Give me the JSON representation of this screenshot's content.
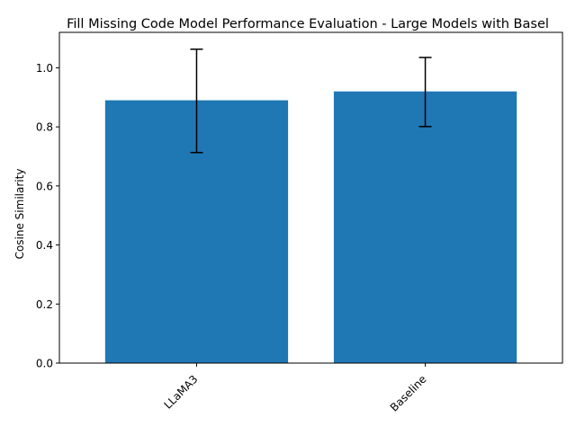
{
  "chart_data": {
    "type": "bar",
    "title": "Fill Missing Code Model Performance Evaluation - Large Models with Basel",
    "xlabel": "",
    "ylabel": "Cosine Similarity",
    "categories": [
      "LLaMA3",
      "Baseline"
    ],
    "values": [
      0.89,
      0.92
    ],
    "error_low": [
      0.713,
      0.801
    ],
    "error_high": [
      1.063,
      1.035
    ],
    "ylim": [
      0.0,
      1.12
    ],
    "yticks": [
      "0.0",
      "0.2",
      "0.4",
      "0.6",
      "0.8",
      "1.0"
    ],
    "ytick_values": [
      0.0,
      0.2,
      0.4,
      0.6,
      0.8,
      1.0
    ],
    "bar_color": "#1f77b4",
    "errorbar_color": "#000000",
    "xtick_rotation_deg": 45,
    "grid": false,
    "legend": "none"
  }
}
